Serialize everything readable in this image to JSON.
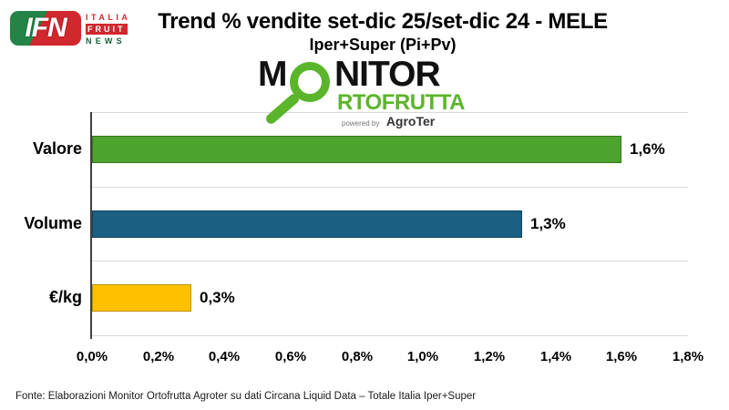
{
  "header": {
    "ifn_logo": {
      "acronym": "IFN",
      "line1": "ITALIA",
      "line2": "FRUIT",
      "line3": "NEWS"
    }
  },
  "monitor_logo": {
    "part1": "M",
    "part2": "NITOR",
    "part3": "RTOFRUTTA",
    "powered_by": "powered by",
    "brand": "AgroTer",
    "green": "#5bb52b"
  },
  "chart_data": {
    "type": "bar",
    "orientation": "horizontal",
    "title": "Trend % vendite set-dic 25/set-dic 24 - MELE",
    "subtitle": "Iper+Super (Pi+Pv)",
    "categories": [
      "Valore",
      "Volume",
      "€/kg"
    ],
    "values": [
      1.6,
      1.3,
      0.3
    ],
    "value_labels": [
      "1,6%",
      "1,3%",
      "0,3%"
    ],
    "bar_colors": [
      "#4ca32e",
      "#1b5f82",
      "#ffc000"
    ],
    "bar_border_colors": [
      "#38761d",
      "#15465f",
      "#bf9000"
    ],
    "xlim": [
      0,
      1.8
    ],
    "x_ticks": [
      "0,0%",
      "0,2%",
      "0,4%",
      "0,6%",
      "0,8%",
      "1,0%",
      "1,2%",
      "1,4%",
      "1,6%",
      "1,8%"
    ],
    "gridlines": "horizontal-category-separators",
    "legend": "none"
  },
  "footer": {
    "source": "Fonte: Elaborazioni Monitor Ortofrutta Agroter su dati Circana Liquid Data – Totale Italia Iper+Super"
  }
}
